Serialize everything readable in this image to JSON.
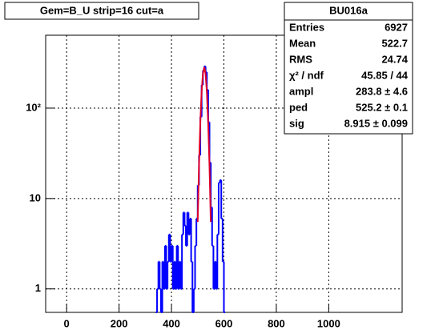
{
  "chart_data": {
    "type": "histogram",
    "title": "Gem=B_U strip=16 cut=a",
    "bins": [
      340,
      345,
      350,
      355,
      360,
      365,
      370,
      375,
      380,
      385,
      390,
      395,
      400,
      405,
      410,
      415,
      420,
      425,
      430,
      435,
      440,
      445,
      450,
      455,
      460,
      465,
      470,
      475,
      480,
      485,
      490,
      495,
      500,
      505,
      510,
      515,
      520,
      525,
      530,
      535,
      540,
      545,
      550,
      555,
      560,
      565,
      570,
      575,
      580,
      585,
      590,
      595,
      600,
      605
    ],
    "values": [
      0,
      1,
      2,
      1,
      0,
      2,
      1,
      3,
      1,
      2,
      4,
      2,
      3,
      1,
      2,
      1,
      3,
      1,
      2,
      1,
      4,
      7,
      5,
      3,
      7,
      4,
      6,
      2,
      0,
      1,
      3,
      6,
      14,
      30,
      80,
      180,
      260,
      290,
      250,
      160,
      70,
      25,
      8,
      3,
      1,
      2,
      1,
      4,
      15,
      16,
      6,
      2,
      0
    ],
    "color": "#0000ff",
    "fit": {
      "color": "#e0002a",
      "x": [
        500,
        505,
        510,
        515,
        520,
        525,
        530,
        535,
        540,
        545,
        550
      ],
      "values": [
        5.5,
        23,
        69.6,
        151,
        241,
        283.8,
        241,
        151,
        69.6,
        23,
        5.5
      ]
    },
    "xlim": [
      -80,
      1280
    ],
    "xticks": [
      0,
      200,
      400,
      600,
      800,
      1000
    ],
    "ylim": [
      0.55,
      640
    ],
    "yticks": [
      1,
      10,
      {
        "value": 100,
        "label": "10²"
      }
    ],
    "log_y": true,
    "grid": true,
    "stats": {
      "title": "BU016a",
      "rows": [
        {
          "label": "Entries",
          "value": "6927"
        },
        {
          "label": "Mean",
          "value": "522.7"
        },
        {
          "label": "RMS",
          "value": "24.74"
        },
        {
          "label": "χ² / ndf",
          "value": "45.85 / 44"
        },
        {
          "label": "ampl",
          "value": "283.8 ± 4.6"
        },
        {
          "label": "ped",
          "value": "525.2 ± 0.1"
        },
        {
          "label": "sig",
          "value": "8.915 ± 0.099"
        }
      ]
    }
  }
}
